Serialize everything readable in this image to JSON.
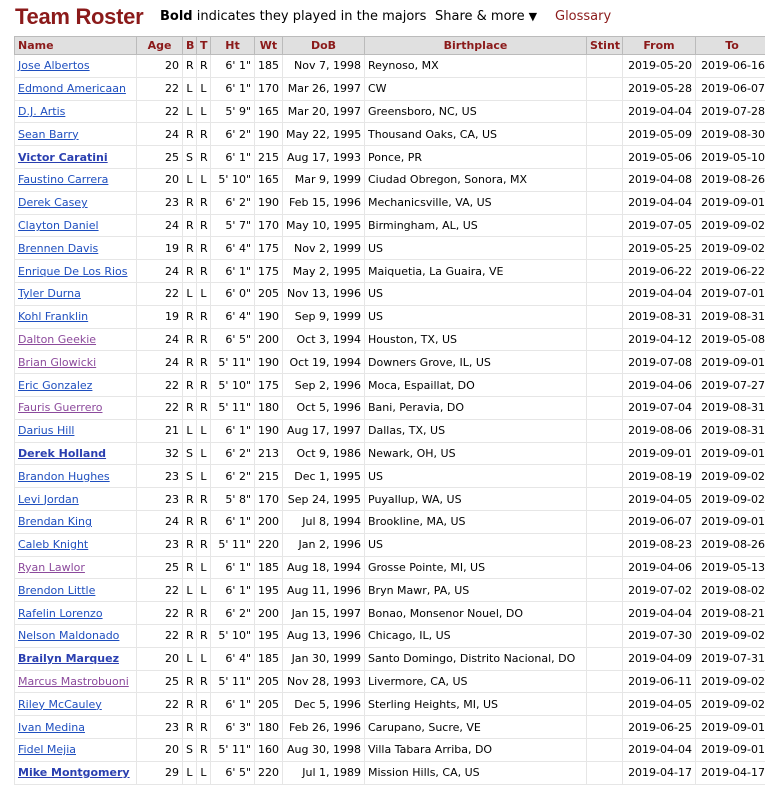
{
  "header": {
    "title": "Team Roster",
    "note_bold": "Bold",
    "note_rest": " indicates they played in the majors",
    "share_label": "Share & more",
    "share_caret": "▼",
    "glossary_label": "Glossary"
  },
  "columns": [
    "Name",
    "Age",
    "B",
    "T",
    "Ht",
    "Wt",
    "DoB",
    "Birthplace",
    "Stint",
    "From",
    "To"
  ],
  "players": [
    {
      "name": "Jose Albertos",
      "age": "20",
      "b": "R",
      "t": "R",
      "ht": "6' 1\"",
      "wt": "185",
      "dob": "Nov 7, 1998",
      "birthplace": "Reynoso, MX",
      "stint": "",
      "from": "2019-05-20",
      "to": "2019-06-16",
      "majors": false,
      "visited": false
    },
    {
      "name": "Edmond Americaan",
      "age": "22",
      "b": "L",
      "t": "L",
      "ht": "6' 1\"",
      "wt": "170",
      "dob": "Mar 26, 1997",
      "birthplace": "CW",
      "stint": "",
      "from": "2019-05-28",
      "to": "2019-06-07",
      "majors": false,
      "visited": false
    },
    {
      "name": "D.J. Artis",
      "age": "22",
      "b": "L",
      "t": "L",
      "ht": "5' 9\"",
      "wt": "165",
      "dob": "Mar 20, 1997",
      "birthplace": "Greensboro, NC, US",
      "stint": "",
      "from": "2019-04-04",
      "to": "2019-07-28",
      "majors": false,
      "visited": false
    },
    {
      "name": "Sean Barry",
      "age": "24",
      "b": "R",
      "t": "R",
      "ht": "6' 2\"",
      "wt": "190",
      "dob": "May 22, 1995",
      "birthplace": "Thousand Oaks, CA, US",
      "stint": "",
      "from": "2019-05-09",
      "to": "2019-08-30",
      "majors": false,
      "visited": false
    },
    {
      "name": "Victor Caratini",
      "age": "25",
      "b": "S",
      "t": "R",
      "ht": "6' 1\"",
      "wt": "215",
      "dob": "Aug 17, 1993",
      "birthplace": "Ponce, PR",
      "stint": "",
      "from": "2019-05-06",
      "to": "2019-05-10",
      "majors": true,
      "visited": false
    },
    {
      "name": "Faustino Carrera",
      "age": "20",
      "b": "L",
      "t": "L",
      "ht": "5' 10\"",
      "wt": "165",
      "dob": "Mar 9, 1999",
      "birthplace": "Ciudad Obregon, Sonora, MX",
      "stint": "",
      "from": "2019-04-08",
      "to": "2019-08-26",
      "majors": false,
      "visited": false
    },
    {
      "name": "Derek Casey",
      "age": "23",
      "b": "R",
      "t": "R",
      "ht": "6' 2\"",
      "wt": "190",
      "dob": "Feb 15, 1996",
      "birthplace": "Mechanicsville, VA, US",
      "stint": "",
      "from": "2019-04-04",
      "to": "2019-09-01",
      "majors": false,
      "visited": false
    },
    {
      "name": "Clayton Daniel",
      "age": "24",
      "b": "R",
      "t": "R",
      "ht": "5' 7\"",
      "wt": "170",
      "dob": "May 10, 1995",
      "birthplace": "Birmingham, AL, US",
      "stint": "",
      "from": "2019-07-05",
      "to": "2019-09-02",
      "majors": false,
      "visited": false
    },
    {
      "name": "Brennen Davis",
      "age": "19",
      "b": "R",
      "t": "R",
      "ht": "6' 4\"",
      "wt": "175",
      "dob": "Nov 2, 1999",
      "birthplace": "US",
      "stint": "",
      "from": "2019-05-25",
      "to": "2019-09-02",
      "majors": false,
      "visited": false
    },
    {
      "name": "Enrique De Los Rios",
      "age": "24",
      "b": "R",
      "t": "R",
      "ht": "6' 1\"",
      "wt": "175",
      "dob": "May 2, 1995",
      "birthplace": "Maiquetia, La Guaira, VE",
      "stint": "",
      "from": "2019-06-22",
      "to": "2019-06-22",
      "majors": false,
      "visited": false
    },
    {
      "name": "Tyler Durna",
      "age": "22",
      "b": "L",
      "t": "L",
      "ht": "6' 0\"",
      "wt": "205",
      "dob": "Nov 13, 1996",
      "birthplace": "US",
      "stint": "",
      "from": "2019-04-04",
      "to": "2019-07-01",
      "majors": false,
      "visited": false
    },
    {
      "name": "Kohl Franklin",
      "age": "19",
      "b": "R",
      "t": "R",
      "ht": "6' 4\"",
      "wt": "190",
      "dob": "Sep 9, 1999",
      "birthplace": "US",
      "stint": "",
      "from": "2019-08-31",
      "to": "2019-08-31",
      "majors": false,
      "visited": false
    },
    {
      "name": "Dalton Geekie",
      "age": "24",
      "b": "R",
      "t": "R",
      "ht": "6' 5\"",
      "wt": "200",
      "dob": "Oct 3, 1994",
      "birthplace": "Houston, TX, US",
      "stint": "",
      "from": "2019-04-12",
      "to": "2019-05-08",
      "majors": false,
      "visited": true
    },
    {
      "name": "Brian Glowicki",
      "age": "24",
      "b": "R",
      "t": "R",
      "ht": "5' 11\"",
      "wt": "190",
      "dob": "Oct 19, 1994",
      "birthplace": "Downers Grove, IL, US",
      "stint": "",
      "from": "2019-07-08",
      "to": "2019-09-01",
      "majors": false,
      "visited": true
    },
    {
      "name": "Eric Gonzalez",
      "age": "22",
      "b": "R",
      "t": "R",
      "ht": "5' 10\"",
      "wt": "175",
      "dob": "Sep 2, 1996",
      "birthplace": "Moca, Espaillat, DO",
      "stint": "",
      "from": "2019-04-06",
      "to": "2019-07-27",
      "majors": false,
      "visited": false
    },
    {
      "name": "Fauris Guerrero",
      "age": "22",
      "b": "R",
      "t": "R",
      "ht": "5' 11\"",
      "wt": "180",
      "dob": "Oct 5, 1996",
      "birthplace": "Bani, Peravia, DO",
      "stint": "",
      "from": "2019-07-04",
      "to": "2019-08-31",
      "majors": false,
      "visited": true
    },
    {
      "name": "Darius Hill",
      "age": "21",
      "b": "L",
      "t": "L",
      "ht": "6' 1\"",
      "wt": "190",
      "dob": "Aug 17, 1997",
      "birthplace": "Dallas, TX, US",
      "stint": "",
      "from": "2019-08-06",
      "to": "2019-08-31",
      "majors": false,
      "visited": false
    },
    {
      "name": "Derek Holland",
      "age": "32",
      "b": "S",
      "t": "L",
      "ht": "6' 2\"",
      "wt": "213",
      "dob": "Oct 9, 1986",
      "birthplace": "Newark, OH, US",
      "stint": "",
      "from": "2019-09-01",
      "to": "2019-09-01",
      "majors": true,
      "visited": false
    },
    {
      "name": "Brandon Hughes",
      "age": "23",
      "b": "S",
      "t": "L",
      "ht": "6' 2\"",
      "wt": "215",
      "dob": "Dec 1, 1995",
      "birthplace": "US",
      "stint": "",
      "from": "2019-08-19",
      "to": "2019-09-02",
      "majors": false,
      "visited": false
    },
    {
      "name": "Levi Jordan",
      "age": "23",
      "b": "R",
      "t": "R",
      "ht": "5' 8\"",
      "wt": "170",
      "dob": "Sep 24, 1995",
      "birthplace": "Puyallup, WA, US",
      "stint": "",
      "from": "2019-04-05",
      "to": "2019-09-02",
      "majors": false,
      "visited": false
    },
    {
      "name": "Brendan King",
      "age": "24",
      "b": "R",
      "t": "R",
      "ht": "6' 1\"",
      "wt": "200",
      "dob": "Jul 8, 1994",
      "birthplace": "Brookline, MA, US",
      "stint": "",
      "from": "2019-06-07",
      "to": "2019-09-01",
      "majors": false,
      "visited": false
    },
    {
      "name": "Caleb Knight",
      "age": "23",
      "b": "R",
      "t": "R",
      "ht": "5' 11\"",
      "wt": "220",
      "dob": "Jan 2, 1996",
      "birthplace": "US",
      "stint": "",
      "from": "2019-08-23",
      "to": "2019-08-26",
      "majors": false,
      "visited": false
    },
    {
      "name": "Ryan Lawlor",
      "age": "25",
      "b": "R",
      "t": "L",
      "ht": "6' 1\"",
      "wt": "185",
      "dob": "Aug 18, 1994",
      "birthplace": "Grosse Pointe, MI, US",
      "stint": "",
      "from": "2019-04-06",
      "to": "2019-05-13",
      "majors": false,
      "visited": true
    },
    {
      "name": "Brendon Little",
      "age": "22",
      "b": "L",
      "t": "L",
      "ht": "6' 1\"",
      "wt": "195",
      "dob": "Aug 11, 1996",
      "birthplace": "Bryn Mawr, PA, US",
      "stint": "",
      "from": "2019-07-02",
      "to": "2019-08-02",
      "majors": false,
      "visited": false
    },
    {
      "name": "Rafelin Lorenzo",
      "age": "22",
      "b": "R",
      "t": "R",
      "ht": "6' 2\"",
      "wt": "200",
      "dob": "Jan 15, 1997",
      "birthplace": "Bonao, Monsenor Nouel, DO",
      "stint": "",
      "from": "2019-04-04",
      "to": "2019-08-21",
      "majors": false,
      "visited": false
    },
    {
      "name": "Nelson Maldonado",
      "age": "22",
      "b": "R",
      "t": "R",
      "ht": "5' 10\"",
      "wt": "195",
      "dob": "Aug 13, 1996",
      "birthplace": "Chicago, IL, US",
      "stint": "",
      "from": "2019-07-30",
      "to": "2019-09-02",
      "majors": false,
      "visited": false
    },
    {
      "name": "Brailyn Marquez",
      "age": "20",
      "b": "L",
      "t": "L",
      "ht": "6' 4\"",
      "wt": "185",
      "dob": "Jan 30, 1999",
      "birthplace": "Santo Domingo, Distrito Nacional, DO",
      "stint": "",
      "from": "2019-04-09",
      "to": "2019-07-31",
      "majors": true,
      "visited": false
    },
    {
      "name": "Marcus Mastrobuoni",
      "age": "25",
      "b": "R",
      "t": "R",
      "ht": "5' 11\"",
      "wt": "205",
      "dob": "Nov 28, 1993",
      "birthplace": "Livermore, CA, US",
      "stint": "",
      "from": "2019-06-11",
      "to": "2019-09-02",
      "majors": false,
      "visited": true
    },
    {
      "name": "Riley McCauley",
      "age": "22",
      "b": "R",
      "t": "R",
      "ht": "6' 1\"",
      "wt": "205",
      "dob": "Dec 5, 1996",
      "birthplace": "Sterling Heights, MI, US",
      "stint": "",
      "from": "2019-04-05",
      "to": "2019-09-02",
      "majors": false,
      "visited": false
    },
    {
      "name": "Ivan Medina",
      "age": "23",
      "b": "R",
      "t": "R",
      "ht": "6' 3\"",
      "wt": "180",
      "dob": "Feb 26, 1996",
      "birthplace": "Carupano, Sucre, VE",
      "stint": "",
      "from": "2019-06-25",
      "to": "2019-09-01",
      "majors": false,
      "visited": false
    },
    {
      "name": "Fidel Mejia",
      "age": "20",
      "b": "S",
      "t": "R",
      "ht": "5' 11\"",
      "wt": "160",
      "dob": "Aug 30, 1998",
      "birthplace": "Villa Tabara Arriba, DO",
      "stint": "",
      "from": "2019-04-04",
      "to": "2019-09-01",
      "majors": false,
      "visited": false
    },
    {
      "name": "Mike Montgomery",
      "age": "29",
      "b": "L",
      "t": "L",
      "ht": "6' 5\"",
      "wt": "220",
      "dob": "Jul 1, 1989",
      "birthplace": "Mission Hills, CA, US",
      "stint": "",
      "from": "2019-04-17",
      "to": "2019-04-17",
      "majors": true,
      "visited": false
    }
  ]
}
